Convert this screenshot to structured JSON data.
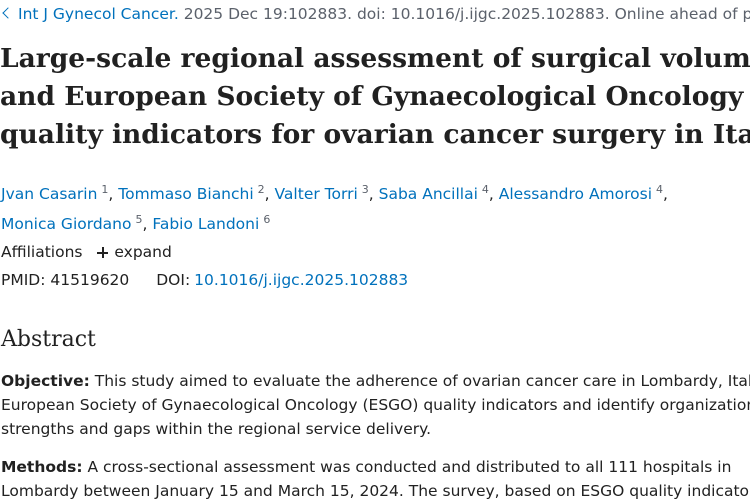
{
  "citation": {
    "journal": "Int J Gynecol Cancer.",
    "details": "2025 Dec 19:102883. doi: 10.1016/j.ijgc.2025.102883. Online ahead of print."
  },
  "title_lines": [
    "Large-scale regional assessment of surgical volumes",
    "and European Society of Gynaecological Oncology",
    "quality indicators for ovarian cancer surgery in Italy"
  ],
  "authors": [
    {
      "name": "Jvan Casarin",
      "sup": "1"
    },
    {
      "name": "Tommaso Bianchi",
      "sup": "2"
    },
    {
      "name": "Valter Torri",
      "sup": "3"
    },
    {
      "name": "Saba Ancillai",
      "sup": "4"
    },
    {
      "name": "Alessandro Amorosi",
      "sup": "4"
    },
    {
      "name": "Monica Giordano",
      "sup": "5"
    },
    {
      "name": "Fabio Landoni",
      "sup": "6"
    }
  ],
  "affiliations": {
    "label": "Affiliations",
    "expand_label": "expand"
  },
  "identifiers": {
    "pmid_label": "PMID:",
    "pmid": "41519620",
    "doi_label": "DOI:",
    "doi": "10.1016/j.ijgc.2025.102883"
  },
  "abstract": {
    "heading": "Abstract",
    "objective_label": "Objective:",
    "objective_lines": [
      " This study aimed to evaluate the adherence of ovarian cancer care in Lombardy, Italy to",
      "European Society of Gynaecological Oncology (ESGO) quality indicators and identify organizational",
      "strengths and gaps within the regional service delivery."
    ],
    "methods_label": "Methods:",
    "methods_lines": [
      " A cross-sectional assessment was conducted and distributed to all 111 hospitals in",
      "Lombardy between January 15 and March 15, 2024. The survey, based on ESGO quality indicators,"
    ]
  },
  "colors": {
    "link": "#0071bc",
    "text": "#212121",
    "muted": "#5b616b"
  },
  "icons": {
    "citation_toggle": "chevron-left-icon",
    "expand": "plus-icon"
  }
}
